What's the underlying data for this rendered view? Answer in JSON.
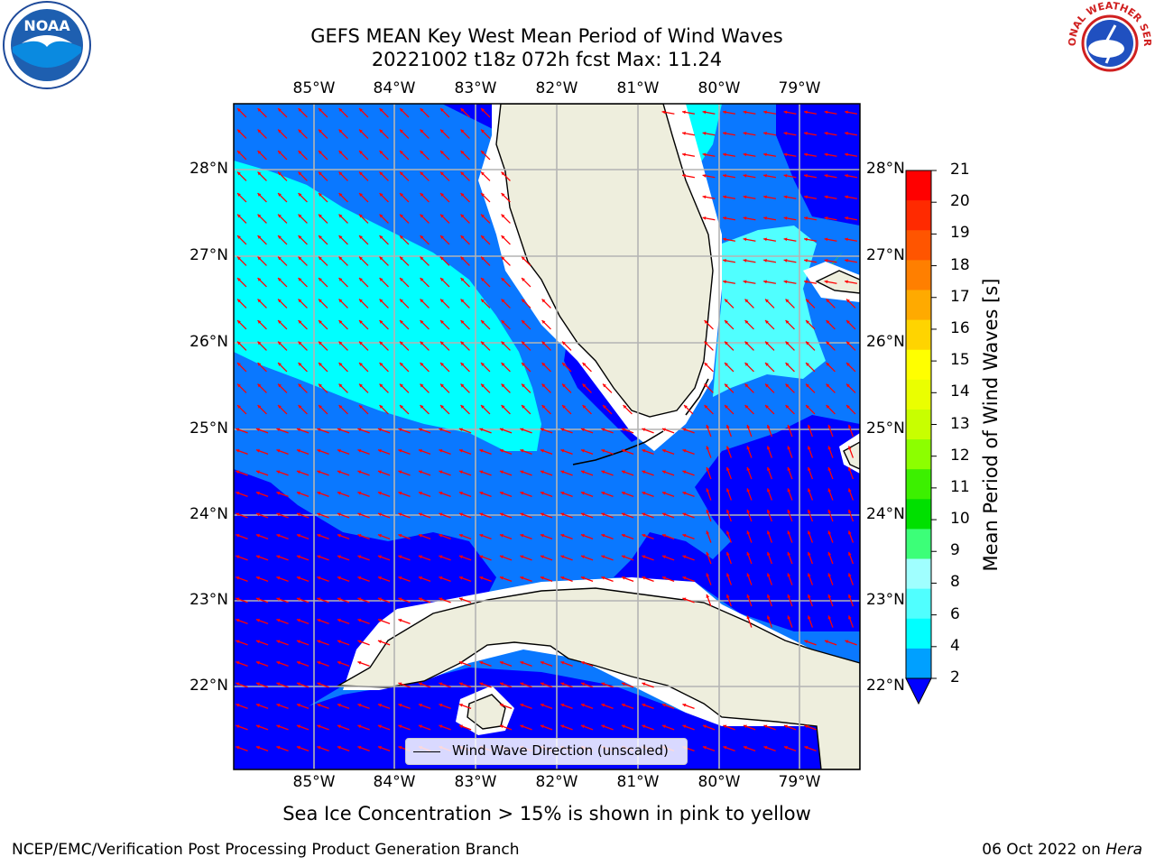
{
  "title_line1": "GEFS MEAN Key West Mean Period of Wind Waves",
  "title_line2": "20221002 t18z 072h fcst   Max: 11.24",
  "lon_ticks": [
    "85°W",
    "84°W",
    "83°W",
    "82°W",
    "81°W",
    "80°W",
    "79°W"
  ],
  "lat_ticks": [
    "28°N",
    "27°N",
    "26°N",
    "25°N",
    "24°N",
    "23°N",
    "22°N"
  ],
  "legend_label": "Wind Wave Direction (unscaled)",
  "colorbar": {
    "label": "Mean Period of Wind Waves [s]",
    "ticks": [
      "21",
      "20",
      "19",
      "18",
      "17",
      "16",
      "15",
      "14",
      "13",
      "12",
      "11",
      "10",
      "9",
      "8",
      "6",
      "4",
      "2"
    ],
    "colors": [
      "#ff0000",
      "#ff2a00",
      "#ff5500",
      "#ff7f00",
      "#ffaa00",
      "#ffd400",
      "#ffff00",
      "#eaff00",
      "#c8ff00",
      "#8cff00",
      "#3cf000",
      "#00e000",
      "#3cff78",
      "#a0ffff",
      "#50ffff",
      "#00ffff",
      "#00a0ff"
    ]
  },
  "note": "Sea Ice Concentration > 15% is shown in pink to yellow",
  "footer_left": "NCEP/EMC/Verification Post Processing Product Generation Branch",
  "footer_date": "06 Oct 2022 on",
  "footer_host": "Hera",
  "logos": {
    "noaa_text": "NOAA",
    "nws_text": "NATIONAL WEATHER SERVICE"
  },
  "colors": {
    "land": "#eeeedd",
    "deep_blue": "#0000ff",
    "mid_blue": "#0a78ff",
    "cyan": "#00ffff",
    "light_cyan": "#64ffff",
    "arrow": "#ff0000",
    "grid": "#b4b4b4"
  }
}
